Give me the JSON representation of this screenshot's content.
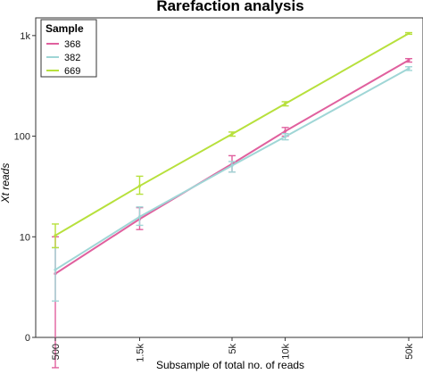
{
  "chart_data": {
    "type": "line",
    "title": "Rarefaction analysis",
    "xlabel": "Subsample of total no. of reads",
    "ylabel": "Xt reads",
    "x_scale": "log",
    "y_scale": "log",
    "x": [
      500,
      1500,
      5000,
      10000,
      50000
    ],
    "x_tick_labels": [
      "500",
      "1.5k",
      "5k",
      "10k",
      "50k"
    ],
    "y_ticks": [
      {
        "label": "0",
        "value": 1
      },
      {
        "label": "10",
        "value": 10
      },
      {
        "label": "100",
        "value": 100
      },
      {
        "label": "1k",
        "value": 1000
      }
    ],
    "ylim": [
      1,
      1500
    ],
    "xlim": [
      450,
      55000
    ],
    "grid": false,
    "legend": {
      "title": "Sample",
      "placement": "top-left"
    },
    "series": [
      {
        "name": "368",
        "color": "#e0609e",
        "values": [
          4.3,
          15.0,
          53,
          112,
          570
        ],
        "err_low": [
          0.5,
          11.8,
          44,
          100,
          545
        ],
        "err_high": [
          10.0,
          19.5,
          64,
          122,
          590
        ]
      },
      {
        "name": "382",
        "color": "#9fd6d6",
        "values": [
          4.7,
          15.8,
          51,
          99,
          470
        ],
        "err_low": [
          2.3,
          13.0,
          44,
          92,
          450
        ],
        "err_high": [
          7.8,
          19.8,
          56,
          106,
          490
        ]
      },
      {
        "name": "669",
        "color": "#b7e03c",
        "values": [
          10.3,
          32.0,
          105,
          210,
          1050
        ],
        "err_low": [
          7.8,
          26.5,
          100,
          200,
          1030
        ],
        "err_high": [
          13.4,
          40.0,
          110,
          220,
          1070
        ]
      }
    ]
  }
}
